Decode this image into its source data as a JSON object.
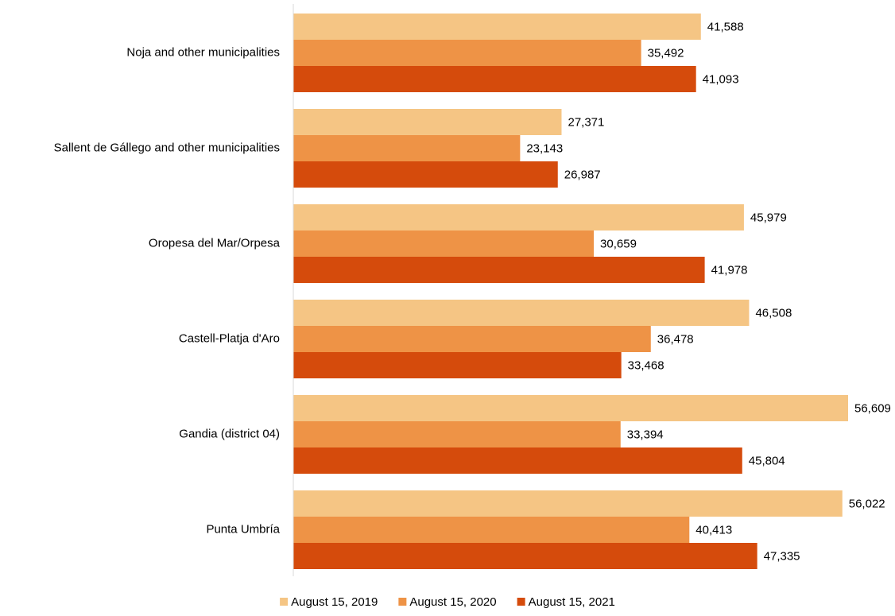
{
  "chart_data": {
    "type": "hbar",
    "categories": [
      "Noja and other municipalities",
      "Sallent de Gállego and other municipalities",
      "Oropesa del Mar/Orpesa",
      "Castell-Platja d'Aro",
      "Gandia (district 04)",
      "Punta Umbría"
    ],
    "series": [
      {
        "name": "August 15, 2019",
        "color": "#f5c584",
        "values": [
          41588,
          27371,
          45979,
          46508,
          56609,
          56022
        ],
        "value_labels": [
          "41,588",
          "27,371",
          "45,979",
          "46,508",
          "56,609",
          "56,022"
        ]
      },
      {
        "name": "August 15, 2020",
        "color": "#ee9346",
        "values": [
          35492,
          23143,
          30659,
          36478,
          33394,
          40413
        ],
        "value_labels": [
          "35,492",
          "23,143",
          "30,659",
          "36,478",
          "33,394",
          "40,413"
        ]
      },
      {
        "name": "August 15, 2021",
        "color": "#d54b0c",
        "values": [
          41093,
          26987,
          41978,
          33468,
          45804,
          47335
        ],
        "value_labels": [
          "41,093",
          "26,987",
          "41,978",
          "33,468",
          "45,804",
          "47,335"
        ]
      }
    ],
    "xlim": [
      0,
      60000
    ],
    "legend": "bottom"
  }
}
